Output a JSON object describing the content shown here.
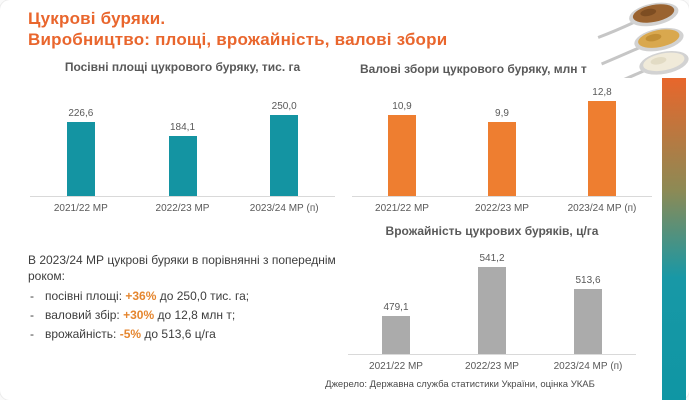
{
  "title": {
    "line1": "Цукрові буряки.",
    "line2": "Виробництво: площі, врожайність, валові збори"
  },
  "colors": {
    "accent_orange": "#E9662D",
    "teal_bar": "#1494A2",
    "orange_bar": "#EE7E30",
    "gray_bar": "#ABABAB",
    "label_gray": "#595959",
    "text_dark": "#3D3D3D",
    "highlight_orange": "#E5862F",
    "axis_line": "#D9D9D9"
  },
  "chart_data": [
    {
      "type": "bar",
      "title": "Посівні площі цукрового буряку, тис. га",
      "categories": [
        "2021/22 МР",
        "2022/23 МР",
        "2023/24 МР (п)"
      ],
      "values": [
        226.6,
        184.1,
        250.0
      ],
      "labels": [
        "226,6",
        "184,1",
        "250,0"
      ],
      "bar_color": "#1494A2",
      "ymin": 0,
      "ymax": 270,
      "grid": false,
      "legend": "none",
      "value_labels": "above-bars"
    },
    {
      "type": "bar",
      "title": "Валові збори цукрового буряку, млн т",
      "categories": [
        "2021/22 МР",
        "2022/23 МР",
        "2023/24 МР (п)"
      ],
      "values": [
        10.9,
        9.9,
        12.8
      ],
      "labels": [
        "10,9",
        "9,9",
        "12,8"
      ],
      "bar_color": "#EE7E30",
      "ymin": 0,
      "ymax": 13.2,
      "grid": false,
      "legend": "none",
      "value_labels": "above-bars"
    },
    {
      "type": "bar",
      "title": "Врожайність цукрових буряків, ц/га",
      "categories": [
        "2021/22 МР",
        "2022/23 МР",
        "2023/24 МР (п)"
      ],
      "values": [
        479.1,
        541.2,
        513.6
      ],
      "labels": [
        "479,1",
        "541,2",
        "513,6"
      ],
      "bar_color": "#ABABAB",
      "ymin": 430,
      "ymax": 550,
      "grid": false,
      "legend": "none",
      "value_labels": "above-bars"
    }
  ],
  "summary": {
    "heading": "В 2023/24 МР цукрові буряки в порівнянні з попереднім роком:",
    "items": [
      {
        "prefix": "посівні площі:",
        "highlight": "+36%",
        "suffix": "до 250,0 тис. га;"
      },
      {
        "prefix": "валовий  збір:",
        "highlight": "+30%",
        "suffix": "до 12,8 млн т;"
      },
      {
        "prefix": "врожайність:",
        "highlight": "-5%",
        "suffix": "до 513,6 ц/га"
      }
    ]
  },
  "source": "Джерело: Державна служба статистики України, оцінка УКАБ",
  "decor": {
    "spoons_image": "three-spoons-with-brown-golden-white-sugar",
    "gradient_strip_colors": [
      "#E8662B",
      "#0F96A4"
    ]
  }
}
